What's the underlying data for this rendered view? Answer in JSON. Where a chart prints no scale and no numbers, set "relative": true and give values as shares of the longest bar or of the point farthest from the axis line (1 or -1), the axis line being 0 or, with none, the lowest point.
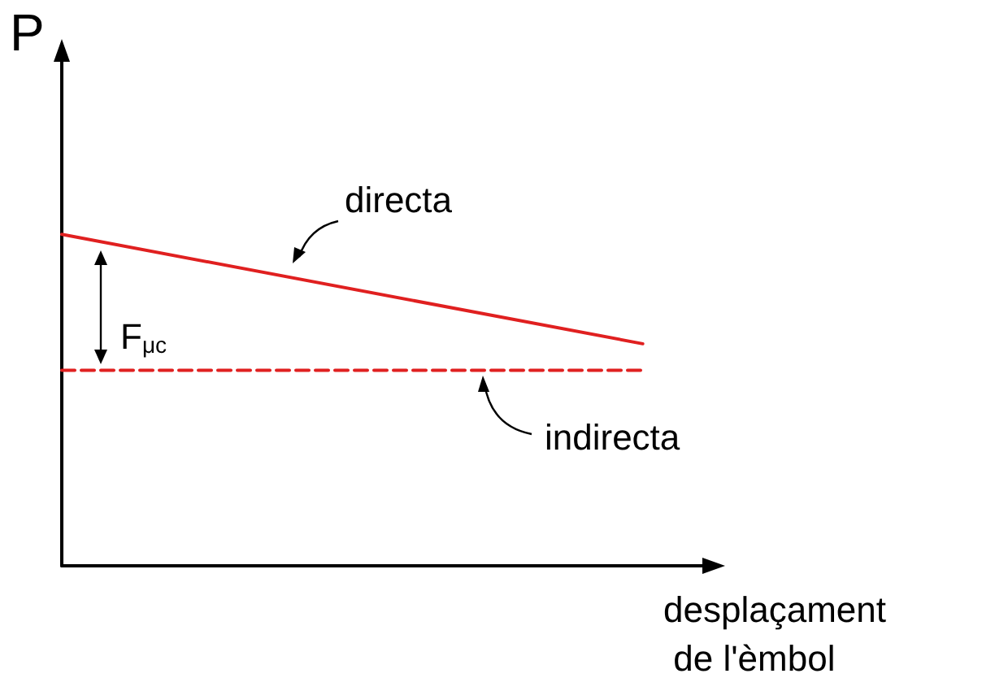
{
  "chart_data": {
    "type": "line",
    "relative": true,
    "ylabel": "P",
    "xlabel": "desplaçament de l'èmbol",
    "categories": [
      null,
      null,
      null,
      null,
      null,
      null,
      null,
      null,
      null,
      null
    ],
    "series": [
      {
        "name": "directa",
        "color": "#e02020",
        "line_style": "solid",
        "values": [
          1,
          null,
          null,
          null,
          null,
          null,
          null,
          null,
          0.67,
          null
        ]
      },
      {
        "name": "indirecta",
        "color": "#e02020",
        "line_style": "dashed",
        "values": [
          0.59,
          null,
          null,
          null,
          null,
          null,
          null,
          null,
          0.59,
          null
        ]
      }
    ],
    "annotations": [
      "F$_{μc}$"
    ],
    "marker": "none",
    "grid": false,
    "legend": false
  }
}
